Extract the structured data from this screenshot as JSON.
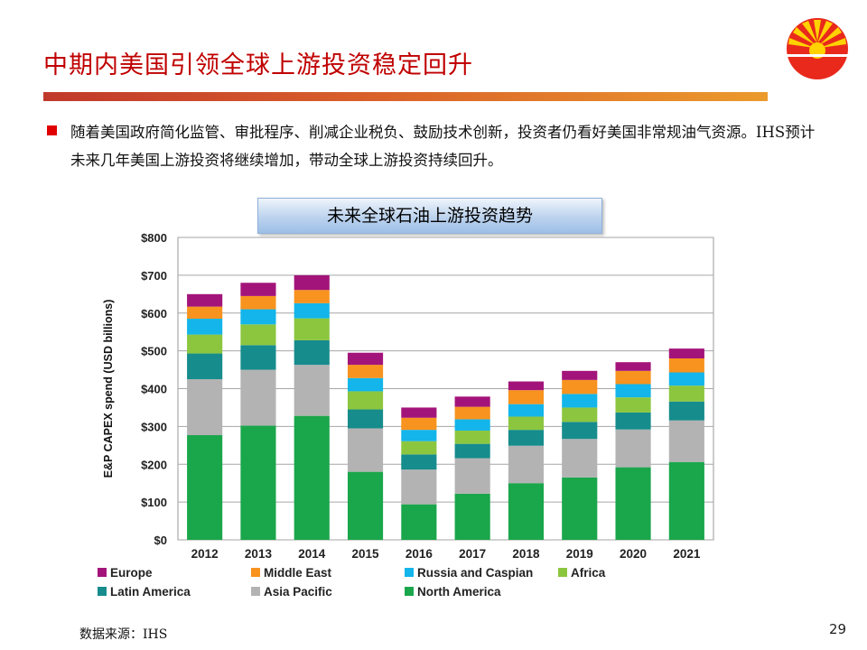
{
  "slide": {
    "title": "中期内美国引领全球上游投资稳定回升",
    "bullet": "随着美国政府简化监管、审批程序、削减企业税负、鼓励技术创新，投资者仍看好美国非常规油气资源。IHS预计未来几年美国上游投资将继续增加，带动全球上游投资持续回升。",
    "chart_heading": "未来全球石油上游投资趋势",
    "source": "数据来源：IHS",
    "page_number": "29"
  },
  "colors": {
    "title": "#c00000",
    "bullet": "#e00000"
  },
  "chart_data": {
    "type": "bar",
    "stacked": true,
    "title": "未来全球石油上游投资趋势",
    "ylabel": "E&P CAPEX spend (USD billions)",
    "xlabel": "",
    "ylim": [
      0,
      800
    ],
    "ytick_values": [
      0,
      100,
      200,
      300,
      400,
      500,
      600,
      700,
      800
    ],
    "ytick_labels": [
      "$0",
      "$100",
      "$200",
      "$300",
      "$400",
      "$500",
      "$600",
      "$700",
      "$800"
    ],
    "grid": true,
    "legend_position": "bottom",
    "categories": [
      "2012",
      "2013",
      "2014",
      "2015",
      "2016",
      "2017",
      "2018",
      "2019",
      "2020",
      "2021"
    ],
    "series": [
      {
        "name": "North America",
        "color": "#1aa64b",
        "values": [
          277,
          302,
          328,
          180,
          94,
          122,
          150,
          165,
          192,
          206
        ]
      },
      {
        "name": "Asia Pacific",
        "color": "#b3b3b3",
        "values": [
          148,
          148,
          135,
          115,
          92,
          94,
          99,
          102,
          100,
          110
        ]
      },
      {
        "name": "Latin America",
        "color": "#168c8c",
        "values": [
          68,
          65,
          65,
          50,
          40,
          38,
          42,
          45,
          45,
          50
        ]
      },
      {
        "name": "Africa",
        "color": "#8cc63f",
        "values": [
          50,
          55,
          58,
          48,
          35,
          35,
          35,
          38,
          40,
          42
        ]
      },
      {
        "name": "Russia and Caspian",
        "color": "#13b5ea",
        "values": [
          42,
          40,
          40,
          35,
          30,
          30,
          33,
          36,
          35,
          35
        ]
      },
      {
        "name": "Middle East",
        "color": "#f7931e",
        "values": [
          32,
          35,
          35,
          35,
          32,
          33,
          37,
          37,
          35,
          37
        ]
      },
      {
        "name": "Europe",
        "color": "#a3147a",
        "values": [
          33,
          35,
          39,
          32,
          27,
          27,
          23,
          24,
          23,
          26
        ]
      }
    ],
    "legend": [
      {
        "name": "Europe",
        "color": "#a3147a"
      },
      {
        "name": "Middle East",
        "color": "#f7931e"
      },
      {
        "name": "Russia and Caspian",
        "color": "#13b5ea"
      },
      {
        "name": "Africa",
        "color": "#8cc63f"
      },
      {
        "name": "Latin America",
        "color": "#168c8c"
      },
      {
        "name": "Asia Pacific",
        "color": "#b3b3b3"
      },
      {
        "name": "North America",
        "color": "#1aa64b"
      }
    ]
  }
}
